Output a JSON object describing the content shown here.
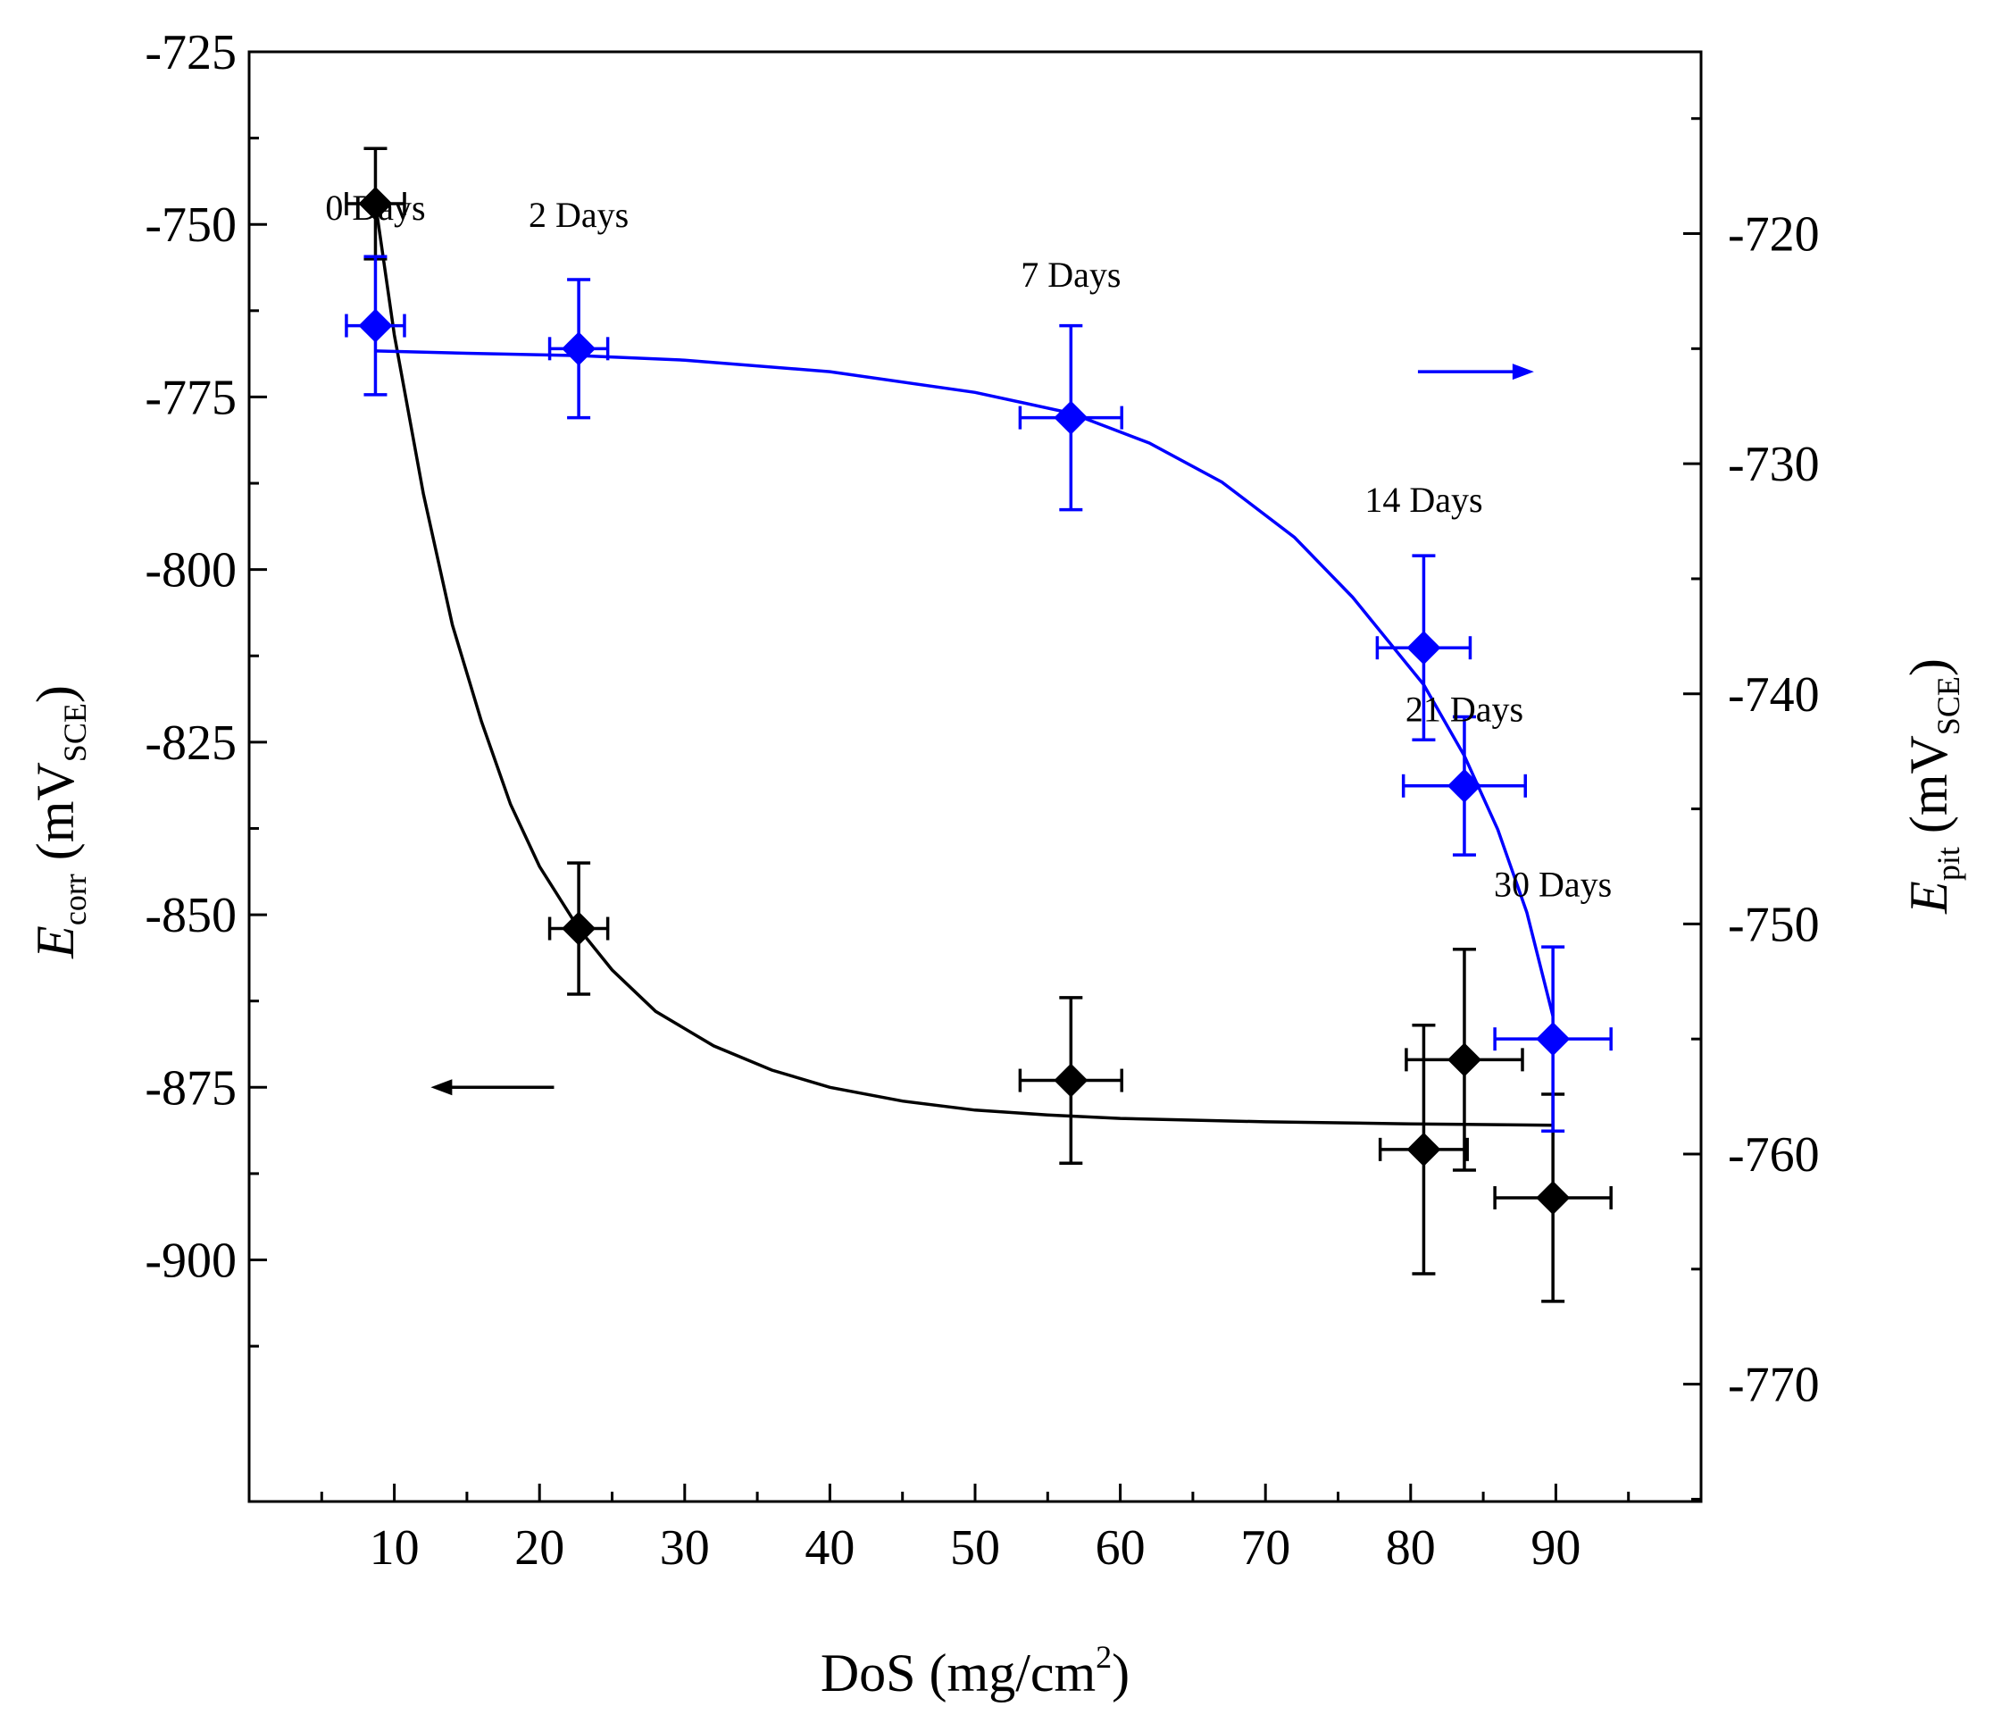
{
  "chart_data": {
    "type": "scatter",
    "xlabel": {
      "main": "DoS (mg/cm",
      "sup": "2",
      "tail": ")"
    },
    "ylabel_left": {
      "var": "E",
      "sub": "corr",
      "unit": " (mV",
      "unit_sub": "SCE",
      "close": ")"
    },
    "ylabel_right": {
      "var": "E",
      "sub": "pit",
      "unit": " (mV",
      "unit_sub": "SCE",
      "close": ")"
    },
    "xlim": [
      0,
      100
    ],
    "ylim_left": [
      -725,
      -935
    ],
    "ylim_right": [
      -712.1,
      -775.1
    ],
    "x_ticks": [
      10,
      20,
      30,
      40,
      50,
      60,
      70,
      80,
      90
    ],
    "y_left_ticks": [
      -725,
      -750,
      -775,
      -800,
      -825,
      -850,
      -875,
      -900
    ],
    "y_right_ticks": [
      -720,
      -730,
      -740,
      -750,
      -760,
      -770
    ],
    "grid": false,
    "series": [
      {
        "name": "Ecorr",
        "axis": "left",
        "color": "#000000",
        "x": [
          8.7,
          22.7,
          56.6,
          80.9,
          83.7,
          89.8
        ],
        "y": [
          -747,
          -852,
          -874,
          -884,
          -871,
          -891
        ],
        "xerr": [
          2,
          2,
          3.5,
          3,
          4,
          4
        ],
        "yerr": [
          8,
          9.5,
          12,
          18,
          16,
          15
        ]
      },
      {
        "name": "Epit",
        "axis": "right",
        "color": "#0000ff",
        "x": [
          8.7,
          22.7,
          56.6,
          80.9,
          83.7,
          89.8
        ],
        "y": [
          -724,
          -725,
          -728,
          -738,
          -744,
          -755
        ],
        "xerr": [
          2,
          2,
          3.5,
          3.2,
          4.2,
          4
        ],
        "yerr": [
          3,
          3,
          4,
          4,
          3,
          4
        ]
      }
    ],
    "fit_curves": [
      {
        "name": "Ecorr fit",
        "axis": "left",
        "color": "#000000",
        "x": [
          8.7,
          10,
          12,
          14,
          16,
          18,
          20,
          22.7,
          25,
          28,
          32,
          36,
          40,
          45,
          50,
          55,
          60,
          70,
          80,
          89.8
        ],
        "y": [
          -747,
          -766,
          -789,
          -808,
          -822,
          -834,
          -843,
          -852,
          -858,
          -864,
          -869,
          -872.5,
          -875,
          -877,
          -878.3,
          -879,
          -879.5,
          -880,
          -880.3,
          -880.5
        ]
      },
      {
        "name": "Epit fit",
        "axis": "right",
        "color": "#0000ff",
        "x": [
          8.7,
          15,
          22.7,
          30,
          40,
          50,
          56.6,
          62,
          67,
          72,
          76,
          80.9,
          83.7,
          86,
          88,
          89.8
        ],
        "y": [
          -725.1,
          -725.2,
          -725.3,
          -725.5,
          -726,
          -726.9,
          -727.8,
          -729.1,
          -730.8,
          -733.2,
          -735.8,
          -739.6,
          -742.7,
          -745.9,
          -749.5,
          -754
        ]
      }
    ],
    "annotations": [
      {
        "text": "0 Days",
        "x": 8.7,
        "y_right": -719.4
      },
      {
        "text": "2 Days",
        "x": 22.7,
        "y_right": -719.7
      },
      {
        "text": "7 Days",
        "x": 56.6,
        "y_right": -722.3
      },
      {
        "text": "14 Days",
        "x": 80.9,
        "y_right": -732.1
      },
      {
        "text": "21 Days",
        "x": 83.7,
        "y_right": -741.2
      },
      {
        "text": "30 Days",
        "x": 89.8,
        "y_right": -748.8
      }
    ],
    "arrows": [
      {
        "series": "Epit",
        "direction": "right",
        "x_from": 80.5,
        "x_to": 88,
        "y_right": -726
      },
      {
        "series": "Ecorr",
        "direction": "left",
        "x_from": 21,
        "x_to": 13,
        "y_left": -875
      }
    ]
  }
}
